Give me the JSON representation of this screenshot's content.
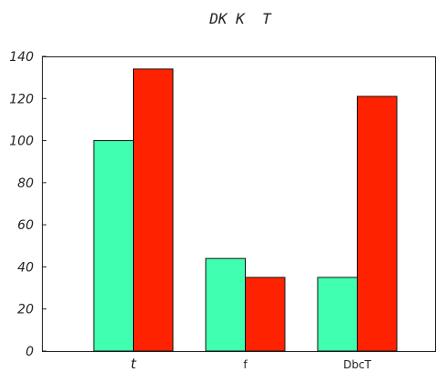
{
  "chart_data": {
    "type": "bar",
    "title": "DK K  T",
    "xlabel": "",
    "ylabel": "",
    "categories": [
      "t",
      "f",
      "DbcT"
    ],
    "series": [
      {
        "color": "#40ffb0",
        "values": [
          100,
          44,
          35
        ]
      },
      {
        "color": "#ff2200",
        "values": [
          134,
          35,
          121
        ]
      }
    ],
    "ylim": [
      0,
      140
    ],
    "yticks": [
      0,
      20,
      40,
      60,
      80,
      100,
      120,
      140
    ],
    "grid": false,
    "legend": "none"
  }
}
